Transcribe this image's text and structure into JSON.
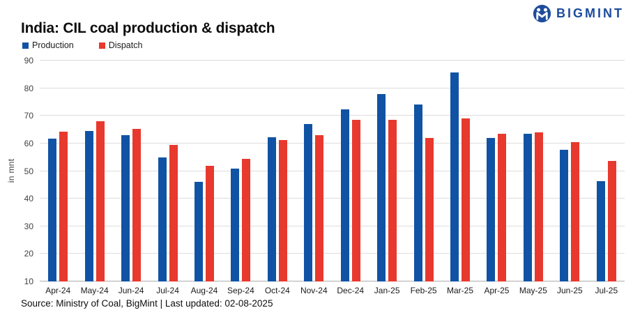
{
  "brand": {
    "name": "BIGMINT",
    "color": "#1d4c9c"
  },
  "header": {
    "title": "India: CIL coal production & dispatch"
  },
  "chart_data": {
    "type": "bar",
    "title": "India: CIL coal production & dispatch",
    "categories": [
      "Apr-24",
      "May-24",
      "Jun-24",
      "Jul-24",
      "Aug-24",
      "Sep-24",
      "Oct-24",
      "Nov-24",
      "Dec-24",
      "Jan-25",
      "Feb-25",
      "Mar-25",
      "Apr-25",
      "May-25",
      "Jun-25",
      "Jul-25"
    ],
    "series": [
      {
        "name": "Production",
        "color": "#1053a5",
        "values": [
          61.8,
          64.4,
          63.1,
          54.9,
          46.0,
          50.9,
          62.3,
          67.0,
          72.3,
          77.8,
          74.0,
          85.8,
          61.9,
          63.4,
          57.7,
          46.4
        ]
      },
      {
        "name": "Dispatch",
        "color": "#e8392e",
        "values": [
          64.3,
          68.1,
          65.2,
          59.5,
          52.0,
          54.4,
          61.3,
          63.0,
          68.5,
          68.6,
          62.0,
          69.0,
          63.5,
          63.9,
          60.4,
          53.6
        ]
      }
    ],
    "xlabel": "",
    "ylabel": "in mnt",
    "ylim": [
      10,
      90
    ],
    "yticks": [
      90,
      80,
      70,
      60,
      50,
      40,
      30,
      20,
      10
    ],
    "grid": true,
    "legend_position": "top-left"
  },
  "footer": {
    "source": "Source: Ministry of Coal, BigMint | Last updated: 02-08-2025"
  }
}
